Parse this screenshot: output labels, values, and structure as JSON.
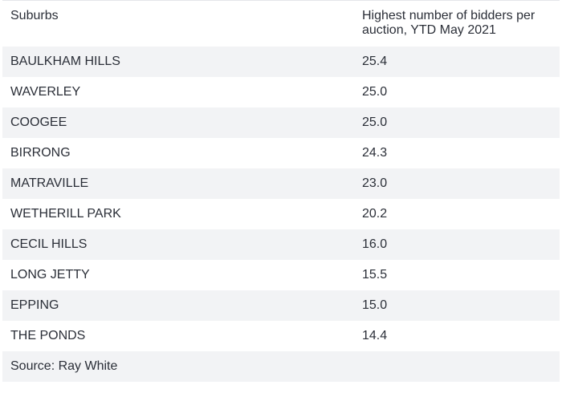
{
  "table": {
    "headers": {
      "suburb": "Suburbs",
      "value": "Highest number of bidders per auction, YTD May 2021"
    },
    "rows": [
      {
        "suburb": "BAULKHAM HILLS",
        "value": "25.4"
      },
      {
        "suburb": "WAVERLEY",
        "value": "25.0"
      },
      {
        "suburb": "COOGEE",
        "value": "25.0"
      },
      {
        "suburb": "BIRRONG",
        "value": "24.3"
      },
      {
        "suburb": "MATRAVILLE",
        "value": "23.0"
      },
      {
        "suburb": "WETHERILL PARK",
        "value": "20.2"
      },
      {
        "suburb": "CECIL HILLS",
        "value": "16.0"
      },
      {
        "suburb": "LONG JETTY",
        "value": "15.5"
      },
      {
        "suburb": "EPPING",
        "value": "15.0"
      },
      {
        "suburb": "THE PONDS",
        "value": "14.4"
      }
    ],
    "source": "Source: Ray White"
  },
  "colors": {
    "text": "#2b2f38",
    "row_shade": "#f2f3f5",
    "border": "#e4e6ea",
    "background": "#ffffff"
  }
}
